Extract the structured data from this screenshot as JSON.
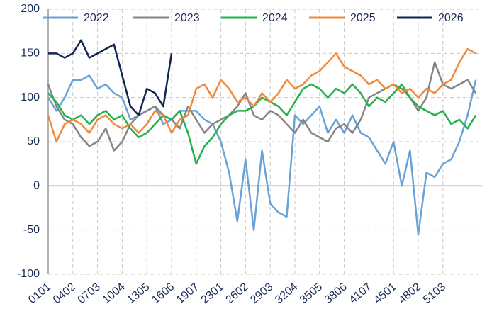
{
  "chart_data": {
    "type": "line",
    "categories": [
      "0101",
      null,
      null,
      "0402",
      null,
      null,
      "0703",
      null,
      null,
      "1004",
      null,
      null,
      "1305",
      null,
      null,
      "1606",
      null,
      null,
      "1907",
      null,
      null,
      "2301",
      null,
      null,
      "2602",
      null,
      null,
      "2903",
      null,
      null,
      "3204",
      null,
      null,
      "3505",
      null,
      null,
      "3806",
      null,
      null,
      "4107",
      null,
      null,
      "4501",
      null,
      null,
      "4802",
      null,
      null,
      "5103",
      null,
      null,
      null,
      null
    ],
    "series": [
      {
        "name": "2022",
        "color": "#6aa2d8",
        "values": [
          100,
          85,
          100,
          120,
          120,
          125,
          110,
          115,
          105,
          100,
          75,
          80,
          85,
          90,
          70,
          75,
          85,
          85,
          85,
          75,
          70,
          50,
          15,
          -40,
          30,
          -50,
          40,
          -20,
          -30,
          -35,
          80,
          70,
          80,
          90,
          60,
          75,
          60,
          80,
          60,
          55,
          40,
          25,
          50,
          0,
          40,
          -55,
          15,
          10,
          25,
          30,
          50,
          80,
          120
        ]
      },
      {
        "name": "2023",
        "color": "#858585",
        "values": [
          115,
          90,
          75,
          70,
          55,
          45,
          50,
          65,
          40,
          50,
          70,
          80,
          85,
          90,
          80,
          75,
          65,
          90,
          75,
          60,
          70,
          75,
          80,
          90,
          105,
          80,
          75,
          85,
          80,
          70,
          60,
          75,
          60,
          55,
          50,
          65,
          70,
          60,
          75,
          100,
          105,
          110,
          115,
          110,
          100,
          85,
          100,
          140,
          115,
          110,
          115,
          120,
          105
        ]
      },
      {
        "name": "2024",
        "color": "#22b14c",
        "values": [
          105,
          95,
          80,
          75,
          80,
          70,
          80,
          85,
          75,
          80,
          65,
          55,
          60,
          70,
          80,
          75,
          85,
          60,
          25,
          45,
          55,
          70,
          80,
          85,
          85,
          90,
          100,
          95,
          90,
          80,
          95,
          110,
          115,
          110,
          100,
          110,
          105,
          115,
          105,
          90,
          100,
          95,
          105,
          115,
          100,
          90,
          85,
          80,
          85,
          70,
          75,
          65,
          80
        ]
      },
      {
        "name": "2025",
        "color": "#ef8a3c",
        "values": [
          80,
          50,
          70,
          75,
          70,
          60,
          75,
          80,
          70,
          65,
          70,
          60,
          70,
          85,
          80,
          60,
          75,
          80,
          110,
          115,
          100,
          120,
          110,
          95,
          100,
          90,
          105,
          95,
          105,
          120,
          110,
          115,
          125,
          130,
          140,
          150,
          135,
          130,
          125,
          115,
          120,
          110,
          115,
          105,
          110,
          100,
          110,
          105,
          115,
          120,
          140,
          155,
          150
        ]
      },
      {
        "name": "2026",
        "color": "#10254f",
        "values": [
          150,
          150,
          145,
          150,
          165,
          145,
          150,
          155,
          160,
          125,
          90,
          80,
          110,
          105,
          90,
          150,
          null,
          null,
          null,
          null,
          null,
          null,
          null,
          null,
          null,
          null,
          null,
          null,
          null,
          null,
          null,
          null,
          null,
          null,
          null,
          null,
          null,
          null,
          null,
          null,
          null,
          null,
          null,
          null,
          null,
          null,
          null,
          null,
          null,
          null,
          null,
          null,
          null
        ]
      }
    ],
    "ylim": [
      -100,
      200
    ],
    "yticks": [
      -100,
      -50,
      0,
      50,
      100,
      150,
      200
    ],
    "grid": true,
    "legend": "top"
  }
}
